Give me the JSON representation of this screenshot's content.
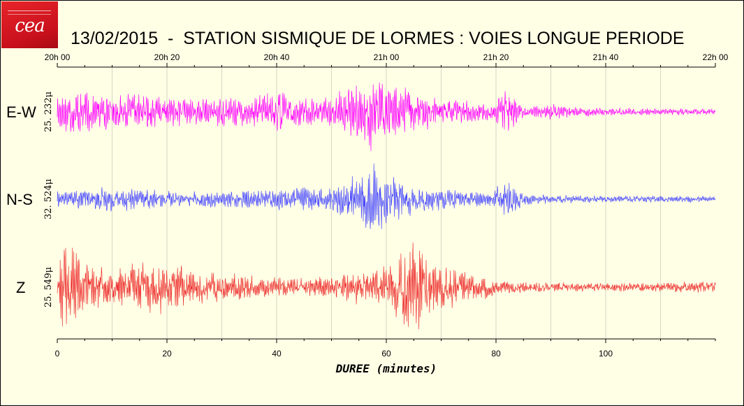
{
  "logo": {
    "text": "cea"
  },
  "title": "13/02/2015  -  STATION SISMIQUE DE LORMES : VOIES LONGUE PERIODE",
  "chart_data": {
    "type": "line",
    "title": "13/02/2015  -  STATION SISMIQUE DE LORMES : VOIES LONGUE PERIODE",
    "xlabel": "DUREE (minutes)",
    "xlim": [
      0,
      120
    ],
    "x_ticks": [
      0,
      20,
      40,
      60,
      80,
      100
    ],
    "x_ticks_minor_step": 5,
    "top_axis_ticks": [
      "20h 00",
      "20h 20",
      "20h 40",
      "21h 00",
      "21h 20",
      "21h 40",
      "22h 00"
    ],
    "grid": "vertical",
    "series": [
      {
        "name": "E-W",
        "scale_label": "25. 232μ",
        "color": "#ff00ff",
        "envelope": {
          "x": [
            0,
            3,
            6,
            10,
            15,
            20,
            28,
            35,
            38,
            40,
            42,
            46,
            50,
            52,
            55,
            57.5,
            60,
            62,
            65,
            70,
            75,
            78,
            80,
            81.5,
            82.5,
            84,
            86,
            90,
            95,
            100,
            110,
            120
          ],
          "amplitude": [
            0.45,
            0.55,
            0.5,
            0.4,
            0.45,
            0.4,
            0.35,
            0.35,
            0.45,
            0.7,
            0.35,
            0.35,
            0.35,
            0.6,
            0.7,
            1.0,
            0.7,
            0.65,
            0.55,
            0.3,
            0.28,
            0.22,
            0.25,
            0.65,
            0.65,
            0.25,
            0.12,
            0.2,
            0.12,
            0.1,
            0.08,
            0.08
          ]
        }
      },
      {
        "name": "N-S",
        "scale_label": "32. 524μ",
        "color": "#4a4aff",
        "envelope": {
          "x": [
            0,
            5,
            10,
            15,
            20,
            25,
            30,
            35,
            40,
            45,
            50,
            53,
            56,
            57.5,
            59,
            62,
            65,
            70,
            75,
            79,
            80.5,
            82,
            83,
            85,
            90,
            100,
            110,
            120
          ],
          "amplitude": [
            0.2,
            0.25,
            0.3,
            0.25,
            0.2,
            0.18,
            0.2,
            0.25,
            0.25,
            0.3,
            0.3,
            0.5,
            0.8,
            1.0,
            0.7,
            0.5,
            0.35,
            0.25,
            0.2,
            0.2,
            0.35,
            0.5,
            0.35,
            0.15,
            0.1,
            0.08,
            0.08,
            0.08
          ]
        }
      },
      {
        "name": "Z",
        "scale_label": "25. 549μ",
        "color": "#ee3333",
        "envelope": {
          "x": [
            0,
            1.5,
            3,
            5,
            8,
            12,
            16,
            20,
            22,
            25,
            30,
            35,
            40,
            45,
            50,
            55,
            58,
            60,
            63,
            65,
            67,
            70,
            72,
            75,
            78,
            80,
            85,
            90,
            100,
            110,
            120
          ],
          "amplitude": [
            0.6,
            0.95,
            0.85,
            0.6,
            0.4,
            0.45,
            0.5,
            0.55,
            0.5,
            0.35,
            0.3,
            0.25,
            0.2,
            0.18,
            0.25,
            0.35,
            0.45,
            0.5,
            0.7,
            1.0,
            0.75,
            0.45,
            0.45,
            0.3,
            0.25,
            0.15,
            0.12,
            0.1,
            0.09,
            0.1,
            0.12
          ]
        }
      }
    ]
  }
}
